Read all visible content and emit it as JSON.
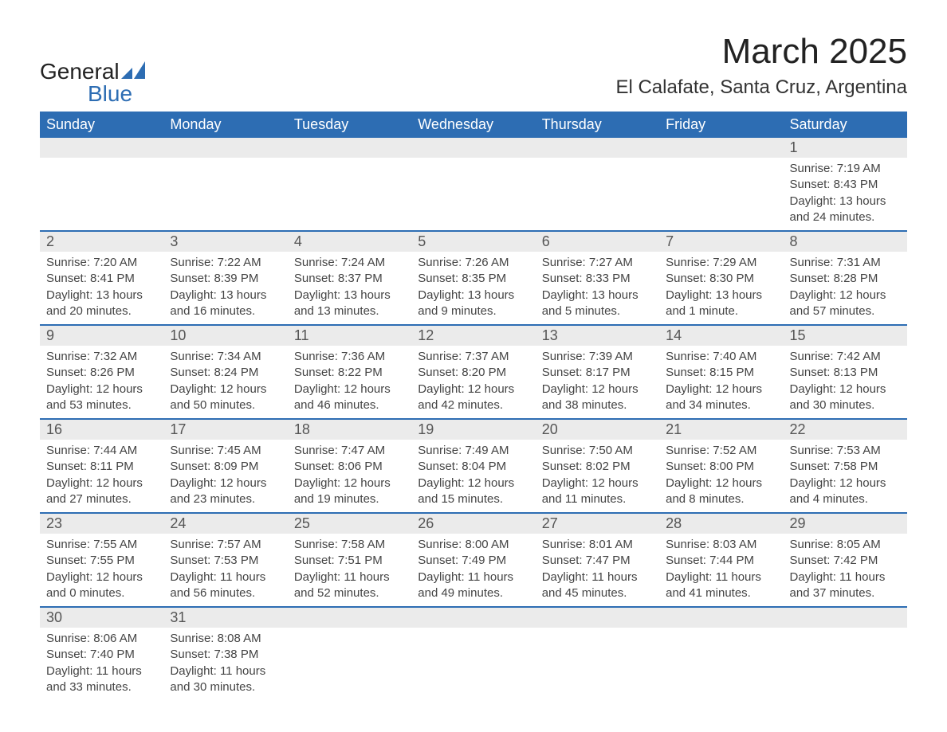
{
  "logo": {
    "name": "General",
    "sub": "Blue"
  },
  "title": "March 2025",
  "location": "El Calafate, Santa Cruz, Argentina",
  "colors": {
    "header_bg": "#2d6db3",
    "header_text": "#ffffff",
    "daynum_bg": "#ebebeb",
    "text": "#444444"
  },
  "weekdays": [
    "Sunday",
    "Monday",
    "Tuesday",
    "Wednesday",
    "Thursday",
    "Friday",
    "Saturday"
  ],
  "weeks": [
    [
      {
        "n": "",
        "sr": "",
        "ss": "",
        "dl": ""
      },
      {
        "n": "",
        "sr": "",
        "ss": "",
        "dl": ""
      },
      {
        "n": "",
        "sr": "",
        "ss": "",
        "dl": ""
      },
      {
        "n": "",
        "sr": "",
        "ss": "",
        "dl": ""
      },
      {
        "n": "",
        "sr": "",
        "ss": "",
        "dl": ""
      },
      {
        "n": "",
        "sr": "",
        "ss": "",
        "dl": ""
      },
      {
        "n": "1",
        "sr": "7:19 AM",
        "ss": "8:43 PM",
        "dl": "13 hours and 24 minutes."
      }
    ],
    [
      {
        "n": "2",
        "sr": "7:20 AM",
        "ss": "8:41 PM",
        "dl": "13 hours and 20 minutes."
      },
      {
        "n": "3",
        "sr": "7:22 AM",
        "ss": "8:39 PM",
        "dl": "13 hours and 16 minutes."
      },
      {
        "n": "4",
        "sr": "7:24 AM",
        "ss": "8:37 PM",
        "dl": "13 hours and 13 minutes."
      },
      {
        "n": "5",
        "sr": "7:26 AM",
        "ss": "8:35 PM",
        "dl": "13 hours and 9 minutes."
      },
      {
        "n": "6",
        "sr": "7:27 AM",
        "ss": "8:33 PM",
        "dl": "13 hours and 5 minutes."
      },
      {
        "n": "7",
        "sr": "7:29 AM",
        "ss": "8:30 PM",
        "dl": "13 hours and 1 minute."
      },
      {
        "n": "8",
        "sr": "7:31 AM",
        "ss": "8:28 PM",
        "dl": "12 hours and 57 minutes."
      }
    ],
    [
      {
        "n": "9",
        "sr": "7:32 AM",
        "ss": "8:26 PM",
        "dl": "12 hours and 53 minutes."
      },
      {
        "n": "10",
        "sr": "7:34 AM",
        "ss": "8:24 PM",
        "dl": "12 hours and 50 minutes."
      },
      {
        "n": "11",
        "sr": "7:36 AM",
        "ss": "8:22 PM",
        "dl": "12 hours and 46 minutes."
      },
      {
        "n": "12",
        "sr": "7:37 AM",
        "ss": "8:20 PM",
        "dl": "12 hours and 42 minutes."
      },
      {
        "n": "13",
        "sr": "7:39 AM",
        "ss": "8:17 PM",
        "dl": "12 hours and 38 minutes."
      },
      {
        "n": "14",
        "sr": "7:40 AM",
        "ss": "8:15 PM",
        "dl": "12 hours and 34 minutes."
      },
      {
        "n": "15",
        "sr": "7:42 AM",
        "ss": "8:13 PM",
        "dl": "12 hours and 30 minutes."
      }
    ],
    [
      {
        "n": "16",
        "sr": "7:44 AM",
        "ss": "8:11 PM",
        "dl": "12 hours and 27 minutes."
      },
      {
        "n": "17",
        "sr": "7:45 AM",
        "ss": "8:09 PM",
        "dl": "12 hours and 23 minutes."
      },
      {
        "n": "18",
        "sr": "7:47 AM",
        "ss": "8:06 PM",
        "dl": "12 hours and 19 minutes."
      },
      {
        "n": "19",
        "sr": "7:49 AM",
        "ss": "8:04 PM",
        "dl": "12 hours and 15 minutes."
      },
      {
        "n": "20",
        "sr": "7:50 AM",
        "ss": "8:02 PM",
        "dl": "12 hours and 11 minutes."
      },
      {
        "n": "21",
        "sr": "7:52 AM",
        "ss": "8:00 PM",
        "dl": "12 hours and 8 minutes."
      },
      {
        "n": "22",
        "sr": "7:53 AM",
        "ss": "7:58 PM",
        "dl": "12 hours and 4 minutes."
      }
    ],
    [
      {
        "n": "23",
        "sr": "7:55 AM",
        "ss": "7:55 PM",
        "dl": "12 hours and 0 minutes."
      },
      {
        "n": "24",
        "sr": "7:57 AM",
        "ss": "7:53 PM",
        "dl": "11 hours and 56 minutes."
      },
      {
        "n": "25",
        "sr": "7:58 AM",
        "ss": "7:51 PM",
        "dl": "11 hours and 52 minutes."
      },
      {
        "n": "26",
        "sr": "8:00 AM",
        "ss": "7:49 PM",
        "dl": "11 hours and 49 minutes."
      },
      {
        "n": "27",
        "sr": "8:01 AM",
        "ss": "7:47 PM",
        "dl": "11 hours and 45 minutes."
      },
      {
        "n": "28",
        "sr": "8:03 AM",
        "ss": "7:44 PM",
        "dl": "11 hours and 41 minutes."
      },
      {
        "n": "29",
        "sr": "8:05 AM",
        "ss": "7:42 PM",
        "dl": "11 hours and 37 minutes."
      }
    ],
    [
      {
        "n": "30",
        "sr": "8:06 AM",
        "ss": "7:40 PM",
        "dl": "11 hours and 33 minutes."
      },
      {
        "n": "31",
        "sr": "8:08 AM",
        "ss": "7:38 PM",
        "dl": "11 hours and 30 minutes."
      },
      {
        "n": "",
        "sr": "",
        "ss": "",
        "dl": ""
      },
      {
        "n": "",
        "sr": "",
        "ss": "",
        "dl": ""
      },
      {
        "n": "",
        "sr": "",
        "ss": "",
        "dl": ""
      },
      {
        "n": "",
        "sr": "",
        "ss": "",
        "dl": ""
      },
      {
        "n": "",
        "sr": "",
        "ss": "",
        "dl": ""
      }
    ]
  ],
  "labels": {
    "sunrise": "Sunrise: ",
    "sunset": "Sunset: ",
    "daylight": "Daylight: "
  }
}
